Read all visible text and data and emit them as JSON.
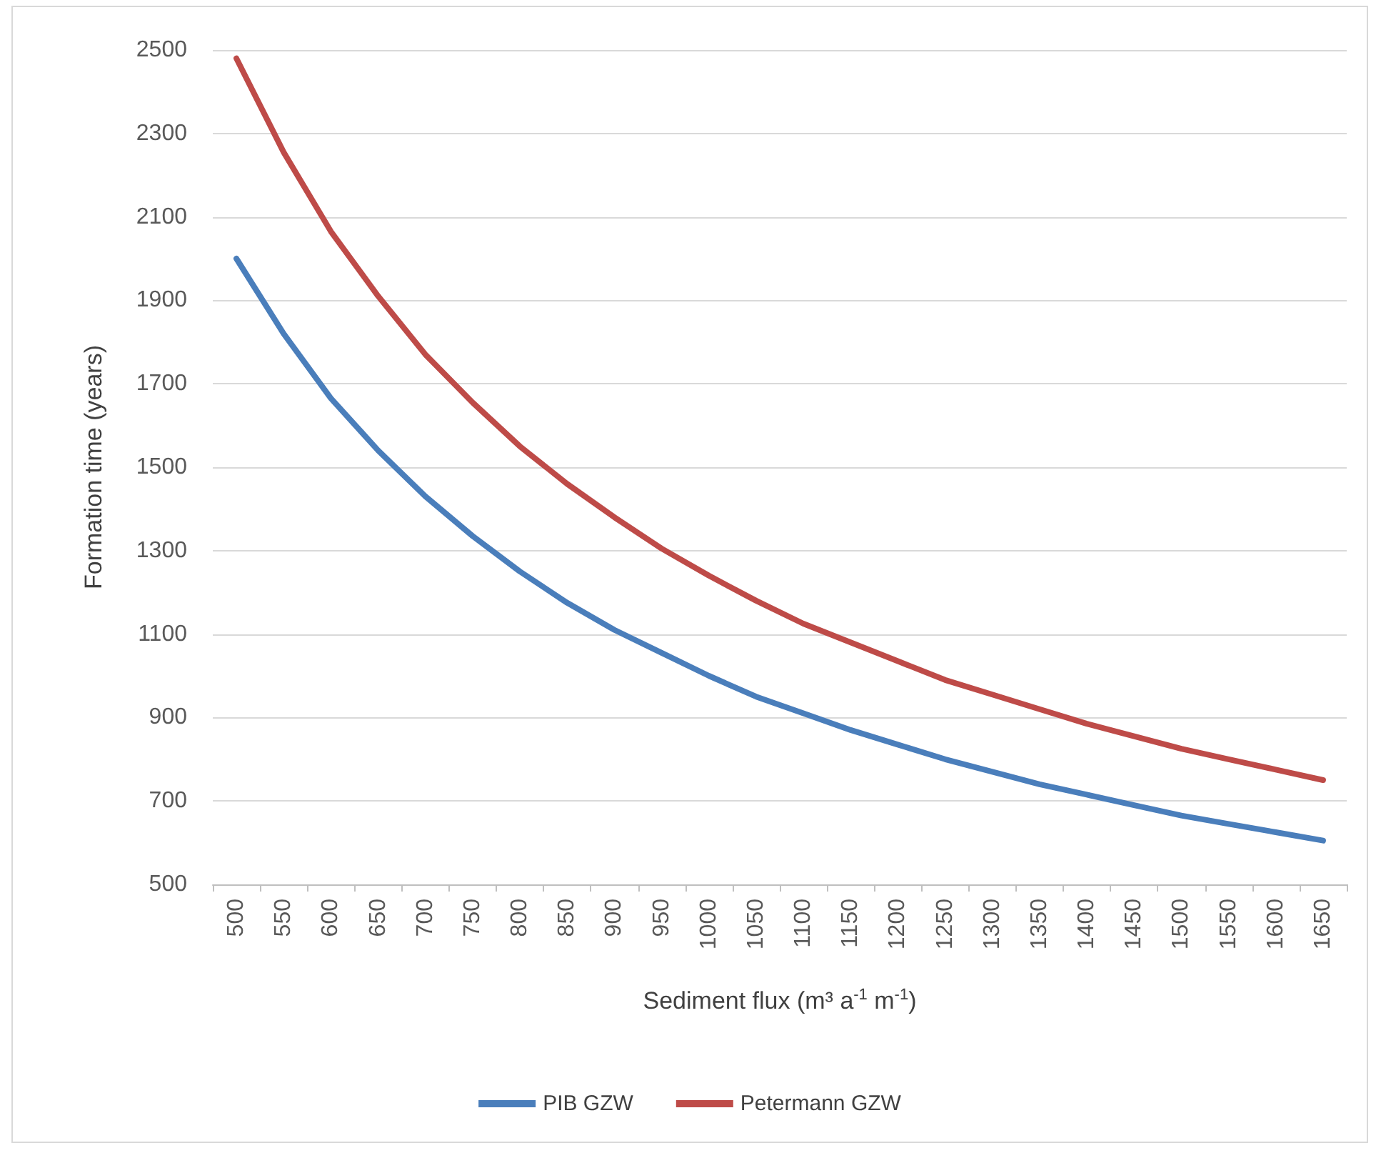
{
  "chart_data": {
    "type": "line",
    "xlabel": "Sediment flux (m³ a$^{-1}$ m$^{-1}$)",
    "ylabel": "Formation time (years)",
    "categories": [
      "500",
      "550",
      "600",
      "650",
      "700",
      "750",
      "800",
      "850",
      "900",
      "950",
      "1000",
      "1050",
      "1100",
      "1150",
      "1200",
      "1250",
      "1300",
      "1350",
      "1400",
      "1450",
      "1500",
      "1550",
      "1600",
      "1650"
    ],
    "series": [
      {
        "name": "PIB GZW",
        "color": "#4a7ebb",
        "values": [
          2000,
          1820,
          1665,
          1540,
          1430,
          1335,
          1250,
          1175,
          1110,
          1055,
          1000,
          950,
          910,
          870,
          835,
          800,
          770,
          740,
          715,
          690,
          665,
          645,
          625,
          605
        ]
      },
      {
        "name": "Petermann GZW",
        "color": "#be4b48",
        "values": [
          2480,
          2255,
          2065,
          1910,
          1770,
          1655,
          1550,
          1460,
          1380,
          1305,
          1240,
          1180,
          1125,
          1080,
          1035,
          990,
          955,
          920,
          885,
          855,
          825,
          800,
          775,
          750
        ]
      }
    ],
    "ylim": [
      500,
      2500
    ],
    "yticks": [
      500,
      700,
      900,
      1100,
      1300,
      1500,
      1700,
      1900,
      2100,
      2300,
      2500
    ],
    "grid": "y",
    "legend": "bottom",
    "marker": "none",
    "line_style": "solid"
  }
}
